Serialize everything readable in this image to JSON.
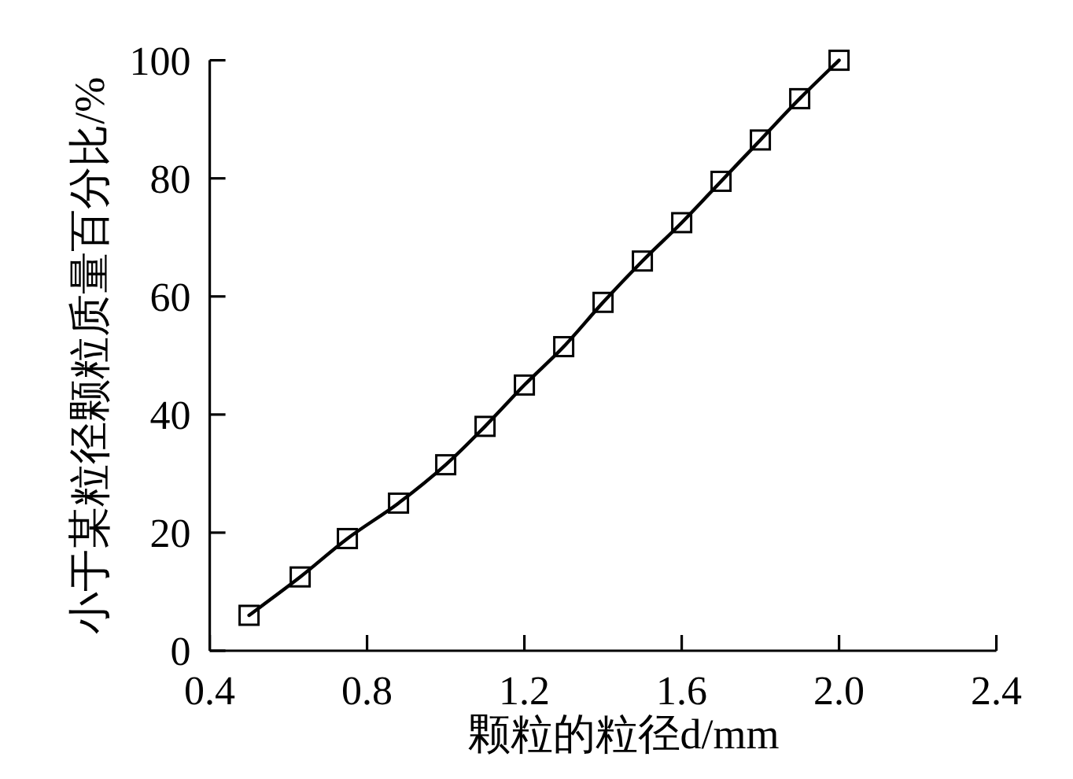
{
  "chart_data": {
    "type": "line",
    "xlabel": "颗粒的粒径d/mm",
    "ylabel": "小于某粒径颗粒质量百分比/%",
    "x": [
      0.5,
      0.63,
      0.75,
      0.88,
      1.0,
      1.1,
      1.2,
      1.3,
      1.4,
      1.5,
      1.6,
      1.7,
      1.8,
      1.9,
      2.0
    ],
    "values": [
      6,
      12.5,
      19,
      25,
      31.5,
      38,
      45,
      51.5,
      59,
      66,
      72.5,
      79.5,
      86.5,
      93.5,
      100
    ],
    "color": "#000000",
    "marker": "square",
    "line_style": "solid",
    "xlim": [
      0.4,
      2.4
    ],
    "xticks": [
      0.4,
      0.8,
      1.2,
      1.6,
      {
        "value": 2,
        "label": "2.0"
      },
      2.4
    ],
    "ylim": [
      0,
      100
    ],
    "yticks": [
      0,
      20,
      40,
      60,
      80,
      100
    ]
  }
}
